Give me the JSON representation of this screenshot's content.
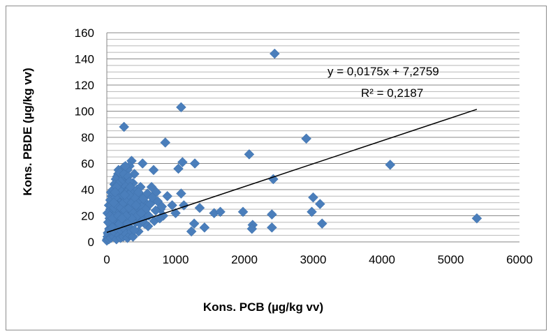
{
  "chart_data": {
    "type": "scatter",
    "xlabel": "Kons. PCB (µg/kg vv)",
    "ylabel": "Kons. PBDE (µg/kg vv)",
    "xlim": [
      0,
      6000
    ],
    "ylim": [
      0,
      160
    ],
    "x_ticks": [
      "0",
      "1000",
      "2000",
      "3000",
      "4000",
      "5000",
      "6000"
    ],
    "y_ticks": [
      "0",
      "20",
      "40",
      "60",
      "80",
      "100",
      "120",
      "140",
      "160"
    ],
    "grid": {
      "horizontal": true,
      "minor_step": 4
    },
    "marker": {
      "shape": "diamond",
      "color": "#4a7ebb"
    },
    "trendline": {
      "slope": 0.0175,
      "intercept": 7.2759,
      "x_range": [
        0,
        5380
      ],
      "equation": "y = 0,0175x + 7,2759",
      "r2": "R² = 0,2187",
      "color": "#000000"
    },
    "points": [
      [
        2440,
        144
      ],
      [
        1080,
        103
      ],
      [
        250,
        88
      ],
      [
        2900,
        79
      ],
      [
        850,
        76
      ],
      [
        2070,
        67
      ],
      [
        1100,
        61
      ],
      [
        1280,
        60
      ],
      [
        4120,
        59
      ],
      [
        520,
        60
      ],
      [
        1040,
        56
      ],
      [
        680,
        55
      ],
      [
        2420,
        48
      ],
      [
        3000,
        34
      ],
      [
        3100,
        29
      ],
      [
        2980,
        23
      ],
      [
        1080,
        37
      ],
      [
        1350,
        26
      ],
      [
        1120,
        28
      ],
      [
        1000,
        22
      ],
      [
        1560,
        22
      ],
      [
        1650,
        23
      ],
      [
        1980,
        23
      ],
      [
        1270,
        14
      ],
      [
        1420,
        11
      ],
      [
        1230,
        8
      ],
      [
        2120,
        13
      ],
      [
        2110,
        10
      ],
      [
        2400,
        21
      ],
      [
        2400,
        11
      ],
      [
        3130,
        14
      ],
      [
        5380,
        18
      ],
      [
        950,
        28
      ],
      [
        880,
        35
      ],
      [
        820,
        20
      ],
      [
        780,
        25
      ],
      [
        720,
        38
      ],
      [
        650,
        42
      ],
      [
        600,
        12
      ],
      [
        560,
        30
      ],
      [
        540,
        18
      ],
      [
        500,
        35
      ],
      [
        480,
        25
      ],
      [
        460,
        8
      ],
      [
        440,
        40
      ],
      [
        420,
        15
      ],
      [
        400,
        52
      ],
      [
        390,
        28
      ],
      [
        380,
        45
      ],
      [
        360,
        62
      ],
      [
        350,
        33
      ],
      [
        340,
        20
      ],
      [
        330,
        58
      ],
      [
        320,
        10
      ],
      [
        310,
        40
      ],
      [
        300,
        55
      ],
      [
        290,
        25
      ],
      [
        280,
        48
      ],
      [
        270,
        30
      ],
      [
        260,
        15
      ],
      [
        255,
        42
      ],
      [
        245,
        57
      ],
      [
        240,
        22
      ],
      [
        235,
        35
      ],
      [
        230,
        50
      ],
      [
        225,
        12
      ],
      [
        220,
        28
      ],
      [
        215,
        44
      ],
      [
        210,
        55
      ],
      [
        205,
        18
      ],
      [
        200,
        38
      ],
      [
        195,
        8
      ],
      [
        190,
        30
      ],
      [
        185,
        47
      ],
      [
        180,
        22
      ],
      [
        175,
        14
      ],
      [
        170,
        36
      ],
      [
        165,
        52
      ],
      [
        160,
        26
      ],
      [
        155,
        10
      ],
      [
        150,
        40
      ],
      [
        145,
        18
      ],
      [
        140,
        32
      ],
      [
        135,
        6
      ],
      [
        130,
        24
      ],
      [
        125,
        45
      ],
      [
        120,
        15
      ],
      [
        115,
        30
      ],
      [
        110,
        9
      ],
      [
        105,
        38
      ],
      [
        100,
        20
      ],
      [
        95,
        12
      ],
      [
        90,
        27
      ],
      [
        85,
        5
      ],
      [
        80,
        33
      ],
      [
        75,
        16
      ],
      [
        70,
        22
      ],
      [
        65,
        8
      ],
      [
        60,
        38
      ],
      [
        55,
        13
      ],
      [
        50,
        25
      ],
      [
        45,
        5
      ],
      [
        40,
        18
      ],
      [
        35,
        10
      ],
      [
        30,
        28
      ],
      [
        25,
        3
      ],
      [
        20,
        15
      ],
      [
        15,
        7
      ],
      [
        10,
        22
      ],
      [
        5,
        2
      ],
      [
        0,
        1
      ],
      [
        10,
        4
      ],
      [
        20,
        6
      ],
      [
        30,
        2
      ],
      [
        40,
        9
      ],
      [
        60,
        3
      ],
      [
        80,
        11
      ],
      [
        100,
        4
      ],
      [
        120,
        7
      ],
      [
        140,
        2
      ],
      [
        160,
        9
      ],
      [
        180,
        5
      ],
      [
        200,
        3
      ],
      [
        220,
        8
      ],
      [
        240,
        4
      ],
      [
        260,
        10
      ],
      [
        280,
        6
      ],
      [
        300,
        3
      ],
      [
        320,
        12
      ],
      [
        340,
        5
      ],
      [
        360,
        8
      ],
      [
        380,
        4
      ],
      [
        400,
        9
      ],
      [
        430,
        22
      ],
      [
        450,
        30
      ],
      [
        470,
        18
      ],
      [
        490,
        42
      ],
      [
        510,
        27
      ],
      [
        530,
        33
      ],
      [
        550,
        14
      ],
      [
        570,
        25
      ],
      [
        590,
        37
      ],
      [
        610,
        20
      ],
      [
        630,
        29
      ],
      [
        660,
        34
      ],
      [
        690,
        16
      ],
      [
        710,
        24
      ],
      [
        740,
        31
      ],
      [
        770,
        18
      ],
      [
        800,
        27
      ],
      [
        150,
        50
      ],
      [
        170,
        55
      ],
      [
        190,
        53
      ],
      [
        210,
        48
      ],
      [
        230,
        46
      ],
      [
        250,
        52
      ],
      [
        270,
        58
      ],
      [
        290,
        44
      ],
      [
        310,
        50
      ],
      [
        330,
        46
      ],
      [
        130,
        48
      ],
      [
        110,
        44
      ],
      [
        90,
        40
      ],
      [
        70,
        35
      ],
      [
        50,
        32
      ],
      [
        45,
        20
      ],
      [
        65,
        28
      ],
      [
        85,
        18
      ],
      [
        105,
        26
      ],
      [
        125,
        34
      ],
      [
        145,
        28
      ],
      [
        165,
        20
      ],
      [
        185,
        14
      ],
      [
        205,
        26
      ],
      [
        225,
        36
      ],
      [
        245,
        30
      ],
      [
        265,
        24
      ],
      [
        285,
        38
      ],
      [
        305,
        32
      ],
      [
        325,
        26
      ],
      [
        345,
        38
      ],
      [
        365,
        30
      ],
      [
        385,
        22
      ],
      [
        405,
        34
      ],
      [
        425,
        28
      ],
      [
        445,
        20
      ],
      [
        460,
        38
      ],
      [
        480,
        14
      ],
      [
        500,
        22
      ],
      [
        520,
        16
      ],
      [
        360,
        18
      ],
      [
        340,
        42
      ],
      [
        320,
        36
      ],
      [
        300,
        14
      ],
      [
        280,
        20
      ],
      [
        260,
        36
      ],
      [
        240,
        44
      ],
      [
        220,
        18
      ],
      [
        200,
        46
      ],
      [
        180,
        40
      ],
      [
        160,
        44
      ],
      [
        140,
        42
      ],
      [
        120,
        38
      ],
      [
        100,
        30
      ]
    ]
  }
}
